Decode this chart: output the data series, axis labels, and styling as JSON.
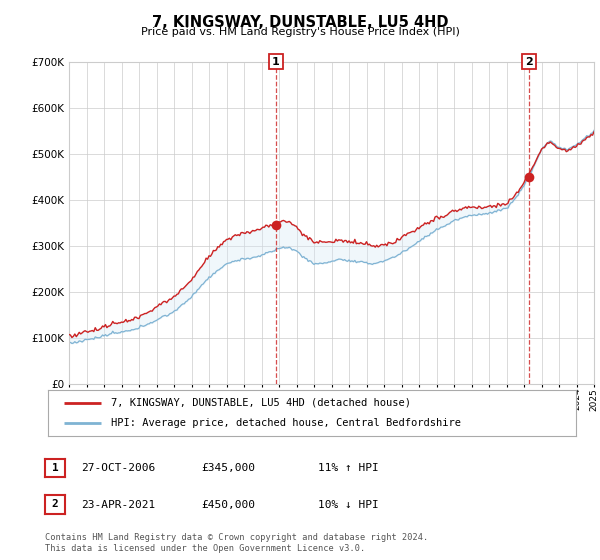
{
  "title": "7, KINGSWAY, DUNSTABLE, LU5 4HD",
  "subtitle": "Price paid vs. HM Land Registry's House Price Index (HPI)",
  "legend_line1": "7, KINGSWAY, DUNSTABLE, LU5 4HD (detached house)",
  "legend_line2": "HPI: Average price, detached house, Central Bedfordshire",
  "transaction1_date": "27-OCT-2006",
  "transaction1_price": "£345,000",
  "transaction1_hpi": "11% ↑ HPI",
  "transaction2_date": "23-APR-2021",
  "transaction2_price": "£450,000",
  "transaction2_hpi": "10% ↓ HPI",
  "copyright": "Contains HM Land Registry data © Crown copyright and database right 2024.\nThis data is licensed under the Open Government Licence v3.0.",
  "hpi_color": "#7fb3d3",
  "fill_color": "#d6e9f5",
  "price_color": "#cc2222",
  "marker_color": "#cc2222",
  "vline_color": "#cc2222",
  "background_color": "#ffffff",
  "grid_color": "#cccccc",
  "ylim": [
    0,
    700000
  ],
  "yticks": [
    0,
    100000,
    200000,
    300000,
    400000,
    500000,
    600000,
    700000
  ]
}
